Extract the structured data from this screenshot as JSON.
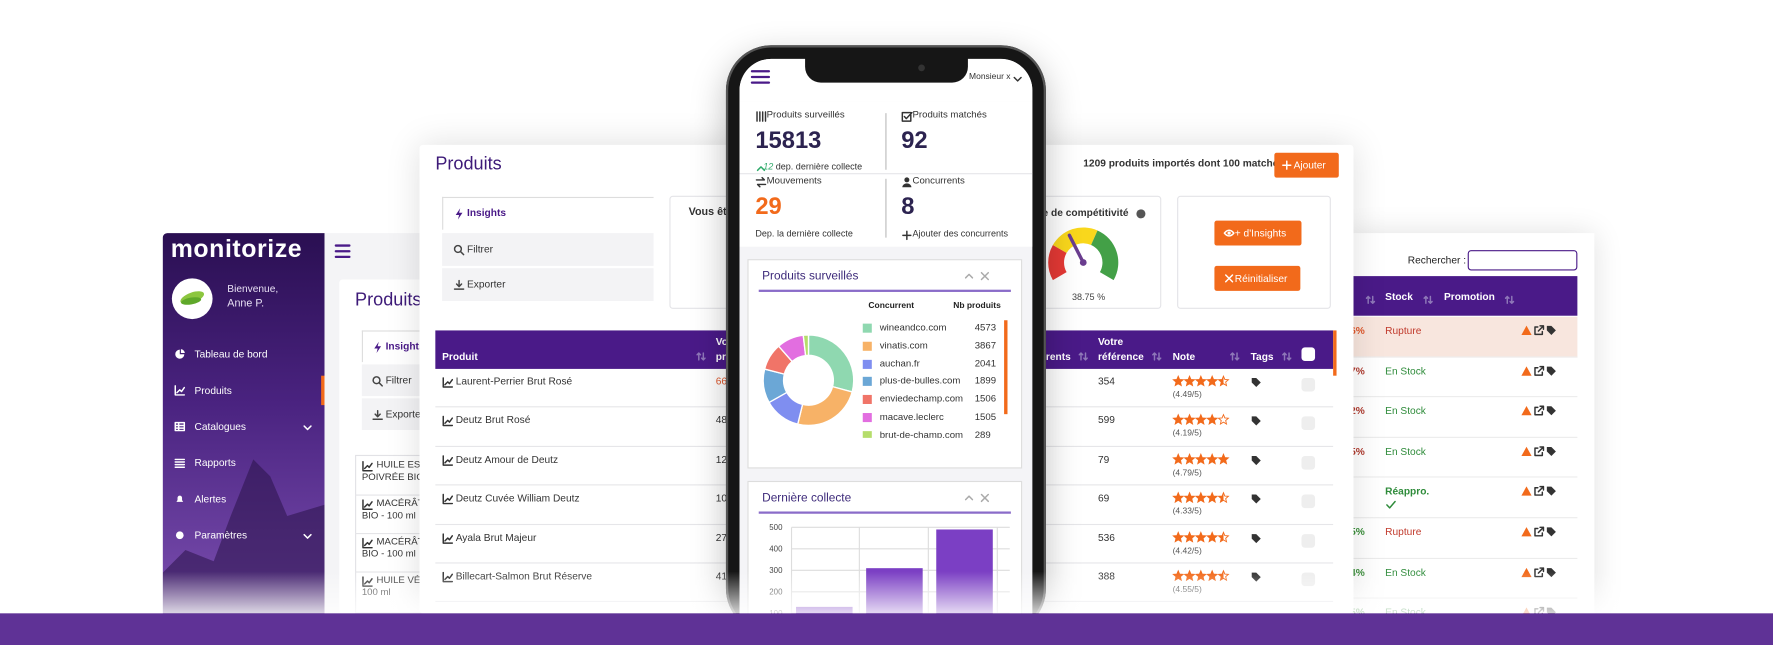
{
  "sidebar": {
    "logo": "monitorize",
    "welcome": "Bienvenue,",
    "user": "Anne P.",
    "menu": [
      "Tableau de bord",
      "Produits",
      "Catalogues",
      "Rapports",
      "Alertes",
      "Paramètres"
    ]
  },
  "back_panel": {
    "title": "Produits",
    "tabs": [
      "Insights",
      "Filtrer",
      "Exporter"
    ],
    "rows": [
      [
        "HUILE ESS",
        "POIVRÉE BIO"
      ],
      [
        "MACÉRÂT",
        "BIO - 100 ml"
      ],
      [
        "MACÉRÂT",
        "BIO - 100 ml"
      ],
      [
        "HUILE VÉG",
        "100 ml"
      ]
    ]
  },
  "main": {
    "title": "Produits",
    "tabs": [
      "Insights",
      "Filtrer",
      "Exporter"
    ],
    "card_title": "Vous êt",
    "summary": "1209 produits importés dont 100 matchés",
    "add_button": "Ajouter",
    "gauge": {
      "title": "ce de compétitivité",
      "value": 38.75,
      "label": "38.75 %",
      "range": [
        0,
        100
      ]
    },
    "buttons": [
      "+ d'Insights",
      "Réinitialiser"
    ],
    "columns": {
      "product": "Produit",
      "price": [
        "Vo",
        "pr"
      ],
      "competitors": "rents",
      "reference": [
        "Votre",
        "référence"
      ],
      "note": "Note",
      "tags": "Tags"
    },
    "rows": [
      {
        "name": "Laurent-Perrier Brut Rosé",
        "price": "66",
        "reference": 354,
        "note": 4.49,
        "note_label": "(4.49/5)"
      },
      {
        "name": "Deutz Brut Rosé",
        "price": "48",
        "reference": 599,
        "note": 4.19,
        "note_label": "(4.19/5)"
      },
      {
        "name": "Deutz Amour de Deutz",
        "price": "12",
        "reference": 79,
        "note": 4.79,
        "note_label": "(4.79/5)"
      },
      {
        "name": "Deutz Cuvée William Deutz",
        "price": "10",
        "reference": 69,
        "note": 4.33,
        "note_label": "(4.33/5)"
      },
      {
        "name": "Ayala Brut Majeur",
        "price": "27",
        "reference": 536,
        "note": 4.42,
        "note_label": "(4.42/5)"
      },
      {
        "name": "Billecart-Salmon Brut Réserve",
        "price": "41",
        "reference": 388,
        "note": 4.55,
        "note_label": "(4.55/5)"
      }
    ]
  },
  "right_panel": {
    "search_label": "Rechercher :",
    "columns": [
      "Stock",
      "Promotion"
    ],
    "rows": [
      {
        "pct": "6%",
        "pct_color": "#e0572b",
        "stock": "Rupture",
        "status": "out"
      },
      {
        "pct": "7%",
        "pct_color": "#b03a2e",
        "stock": "En Stock",
        "status": "in"
      },
      {
        "pct": "2%",
        "pct_color": "#b03a2e",
        "stock": "En Stock",
        "status": "in"
      },
      {
        "pct": "5%",
        "pct_color": "#b03a2e",
        "stock": "En Stock",
        "status": "in"
      },
      {
        "pct": null,
        "pct_color": "#b03a2e",
        "stock": "Réappro.",
        "status": "restock"
      },
      {
        "pct": "5%",
        "pct_color": "#3a8f3a",
        "stock": "Rupture",
        "status": "out"
      },
      {
        "pct": "4%",
        "pct_color": "#3a8f3a",
        "stock": "En Stock",
        "status": "in"
      },
      {
        "pct": "5%",
        "pct_color": "#3a8f3a",
        "stock": "En Stock",
        "status": "in"
      }
    ]
  },
  "phone": {
    "user": "Monsieur x",
    "stats": [
      {
        "label": "Produits surveillés",
        "value": 15813,
        "delta": 12,
        "note": "dep. dernière collecte"
      },
      {
        "label": "Produits matchés",
        "value": 92
      },
      {
        "label": "Mouvements",
        "value": 29,
        "note": "Dep. la dernière collecte"
      },
      {
        "label": "Concurrents",
        "value": 8,
        "action": "Ajouter des concurrents"
      }
    ],
    "donut": {
      "title": "Produits surveillés",
      "columns": [
        "Concurrent",
        "Nb produits"
      ],
      "items": [
        {
          "name": "wineandco.com",
          "color": "#8fd8b0",
          "value": 4573
        },
        {
          "name": "vinatis.com",
          "color": "#f7b267",
          "value": 3867
        },
        {
          "name": "auchan.fr",
          "color": "#7f8ef0",
          "value": 2041
        },
        {
          "name": "plus-de-bulles.com",
          "color": "#6ba7d6",
          "value": 1899
        },
        {
          "name": "enviedechamp.com",
          "color": "#f07468",
          "value": 1506
        },
        {
          "name": "macave.leclerc",
          "color": "#e26ee0",
          "value": 1505
        },
        {
          "name": "brut-de-champ.com",
          "color": "#b5dd6b",
          "value": 289
        }
      ]
    },
    "collecte": {
      "type": "bar",
      "title": "Dernière collecte",
      "ylim": [
        0,
        500
      ],
      "yticks": [
        100,
        200,
        300,
        400,
        500
      ],
      "values": [
        130,
        310,
        490
      ],
      "color": "#7b3fc4",
      "grid": true
    }
  }
}
